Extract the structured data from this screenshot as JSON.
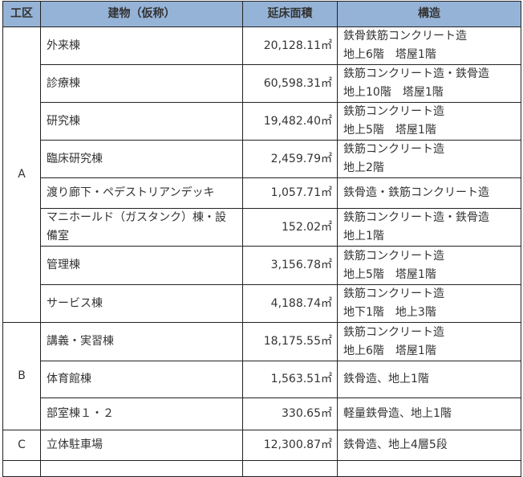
{
  "headers": {
    "zone": "工区",
    "building": "建物（仮称）",
    "area": "延床面積",
    "structure": "構造"
  },
  "unit": "㎡",
  "zones": [
    {
      "zone": "A",
      "rows": [
        {
          "building": "外来棟",
          "area": "20,128.11",
          "structure": [
            "鉄骨鉄筋コンクリート造",
            "地上6階　塔屋1階"
          ]
        },
        {
          "building": "診療棟",
          "area": "60,598.31",
          "structure": [
            "鉄筋コンクリート造・鉄骨造",
            "地上10階　塔屋1階"
          ]
        },
        {
          "building": "研究棟",
          "area": "19,482.40",
          "structure": [
            "鉄筋コンクリート造",
            "地上5階　塔屋1階"
          ]
        },
        {
          "building": "臨床研究棟",
          "area": "2,459.79",
          "structure": [
            "鉄筋コンクリート造",
            "地上2階"
          ]
        },
        {
          "building": "渡り廊下・ペデストリアンデッキ",
          "area": "1,057.71",
          "structure": [
            "鉄骨造・鉄筋コンクリート造"
          ]
        },
        {
          "building": "マニホールド（ガスタンク）棟・設備室",
          "area": "152.02",
          "structure": [
            "鉄筋コンクリート造・鉄骨造",
            "地上1階"
          ]
        },
        {
          "building": "管理棟",
          "area": "3,156.78",
          "structure": [
            "鉄筋コンクリート造",
            "地上5階　塔屋1階"
          ]
        },
        {
          "building": "サービス棟",
          "area": "4,188.74",
          "structure": [
            "鉄筋コンクリート造",
            "地下1階　地上3階"
          ]
        }
      ]
    },
    {
      "zone": "B",
      "rows": [
        {
          "building": "講義・実習棟",
          "area": "18,175.55",
          "structure": [
            "鉄筋コンクリート造",
            "地上6階　塔屋1階"
          ]
        },
        {
          "building": "体育館棟",
          "area": "1,563.51",
          "structure": [
            "鉄骨造、地上1階"
          ]
        },
        {
          "building": "部室棟１・２",
          "area": "330.65",
          "structure": [
            "軽量鉄骨造、地上1階"
          ]
        }
      ]
    },
    {
      "zone": "C",
      "rows": [
        {
          "building": "立体駐車場",
          "area": "12,300.87",
          "structure": [
            "鉄骨造、地上4層5段"
          ]
        }
      ]
    }
  ],
  "colors": {
    "header_bg": "#95b3d7",
    "border": "#222222"
  }
}
